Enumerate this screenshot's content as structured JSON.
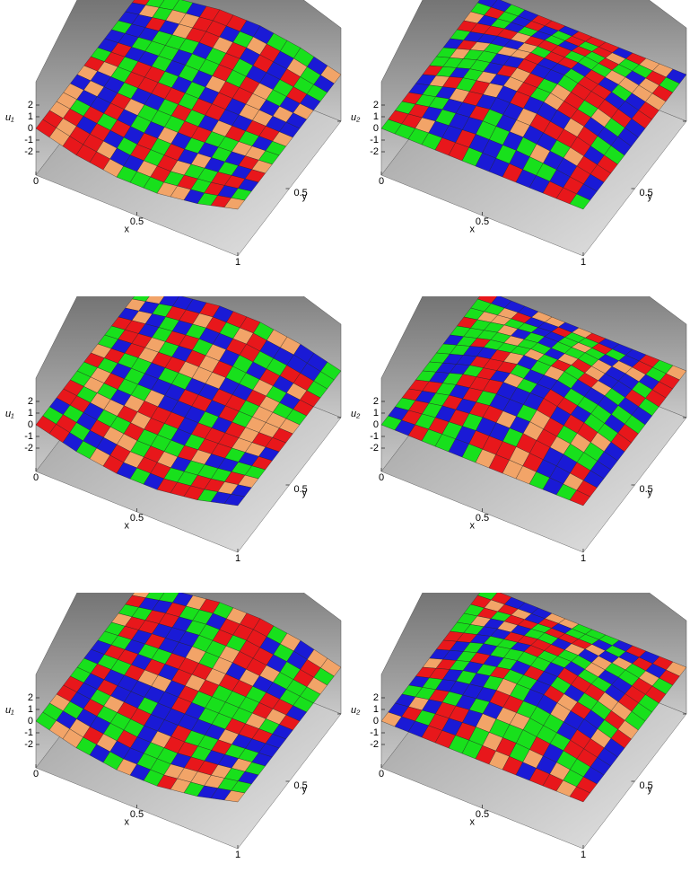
{
  "chart_data": [
    {
      "type": "surface",
      "zlabel": "u₁",
      "xlabel": "x",
      "ylabel": "y",
      "xlim": [
        0,
        1
      ],
      "ylim": [
        0,
        1
      ],
      "zlim": [
        -4,
        4
      ],
      "xticks": [
        0,
        0.5,
        1
      ],
      "yticks": [
        0.5,
        1
      ],
      "zticks": [
        -2,
        -1,
        0,
        1,
        2
      ],
      "z": [
        [
          0,
          0,
          0,
          0,
          0,
          0
        ],
        [
          -0.9,
          -0.5,
          -0.2,
          0.2,
          0.5,
          0.9
        ],
        [
          -1.4,
          -0.9,
          -0.3,
          0.3,
          0.9,
          1.4
        ],
        [
          -1.4,
          -0.9,
          -0.3,
          0.3,
          0.9,
          1.4
        ],
        [
          -0.9,
          -0.5,
          -0.2,
          0.2,
          0.5,
          0.9
        ],
        [
          0,
          0,
          0,
          0,
          0,
          0
        ]
      ]
    },
    {
      "type": "surface",
      "zlabel": "u₂",
      "xlabel": "x",
      "ylabel": "y",
      "xlim": [
        0,
        1
      ],
      "ylim": [
        0,
        1
      ],
      "zlim": [
        -4,
        4
      ],
      "xticks": [
        0,
        0.5,
        1
      ],
      "yticks": [
        0.5,
        1
      ],
      "zticks": [
        -2,
        -1,
        0,
        1,
        2
      ],
      "z": [
        [
          0,
          0,
          0,
          0,
          0,
          0
        ],
        [
          0,
          0.7,
          1.1,
          1.1,
          0.7,
          0
        ],
        [
          0,
          1.1,
          1.8,
          1.8,
          1.1,
          0
        ],
        [
          0,
          1.1,
          1.8,
          1.8,
          1.1,
          0
        ],
        [
          0,
          0.7,
          1.1,
          1.1,
          0.7,
          0
        ],
        [
          0,
          0,
          0,
          0,
          0,
          0
        ]
      ]
    },
    {
      "type": "surface",
      "zlabel": "u₁",
      "xlabel": "x",
      "ylabel": "y",
      "xlim": [
        0,
        1
      ],
      "ylim": [
        0,
        1
      ],
      "zlim": [
        -4,
        4
      ],
      "xticks": [
        0,
        0.5,
        1
      ],
      "yticks": [
        0.5,
        1
      ],
      "zticks": [
        -2,
        -1,
        0,
        1,
        2
      ],
      "z": [
        [
          0,
          0,
          0,
          0,
          0,
          0
        ],
        [
          -0.9,
          -0.5,
          -0.2,
          0.2,
          0.5,
          0.9
        ],
        [
          -1.4,
          -0.9,
          -0.3,
          0.3,
          0.9,
          1.4
        ],
        [
          -1.4,
          -0.9,
          -0.3,
          0.3,
          0.9,
          1.4
        ],
        [
          -0.9,
          -0.5,
          -0.2,
          0.2,
          0.5,
          0.9
        ],
        [
          0,
          0,
          0,
          0,
          0,
          0
        ]
      ]
    },
    {
      "type": "surface",
      "zlabel": "u₂",
      "xlabel": "x",
      "ylabel": "y",
      "xlim": [
        0,
        1
      ],
      "ylim": [
        0,
        1
      ],
      "zlim": [
        -4,
        4
      ],
      "xticks": [
        0,
        0.5,
        1
      ],
      "yticks": [
        0.5,
        1
      ],
      "zticks": [
        -2,
        -1,
        0,
        1,
        2
      ],
      "z": [
        [
          0,
          0,
          0,
          0,
          0,
          0
        ],
        [
          0,
          0.7,
          1.1,
          1.1,
          0.7,
          0
        ],
        [
          0,
          1.1,
          1.8,
          1.8,
          1.1,
          0
        ],
        [
          0,
          1.1,
          1.8,
          1.8,
          1.1,
          0
        ],
        [
          0,
          0.7,
          1.1,
          1.1,
          0.7,
          0
        ],
        [
          0,
          0,
          0,
          0,
          0,
          0
        ]
      ]
    },
    {
      "type": "surface",
      "zlabel": "u₁",
      "xlabel": "x",
      "ylabel": "y",
      "xlim": [
        0,
        1
      ],
      "ylim": [
        0,
        1
      ],
      "zlim": [
        -4,
        4
      ],
      "xticks": [
        0,
        0.5,
        1
      ],
      "yticks": [
        0.5,
        1
      ],
      "zticks": [
        -2,
        -1,
        0,
        1,
        2
      ],
      "z": [
        [
          0,
          0,
          0,
          0,
          0,
          0
        ],
        [
          -0.9,
          -0.5,
          -0.2,
          0.2,
          0.5,
          0.9
        ],
        [
          -1.4,
          -0.9,
          -0.3,
          0.3,
          0.9,
          1.4
        ],
        [
          -1.4,
          -0.9,
          -0.3,
          0.3,
          0.9,
          1.4
        ],
        [
          -0.9,
          -0.5,
          -0.2,
          0.2,
          0.5,
          0.9
        ],
        [
          0,
          0,
          0,
          0,
          0,
          0
        ]
      ]
    },
    {
      "type": "surface",
      "zlabel": "u₂",
      "xlabel": "x",
      "ylabel": "y",
      "xlim": [
        0,
        1
      ],
      "ylim": [
        0,
        1
      ],
      "zlim": [
        -4,
        4
      ],
      "xticks": [
        0,
        0.5,
        1
      ],
      "yticks": [
        0.5,
        1
      ],
      "zticks": [
        -2,
        -1,
        0,
        1,
        2
      ],
      "z": [
        [
          0,
          0,
          0,
          0,
          0,
          0
        ],
        [
          0,
          0.7,
          1.1,
          1.1,
          0.7,
          0
        ],
        [
          0,
          1.1,
          1.8,
          1.8,
          1.1,
          0
        ],
        [
          0,
          1.1,
          1.8,
          1.8,
          1.1,
          0
        ],
        [
          0,
          0.7,
          1.1,
          1.1,
          0.7,
          0
        ],
        [
          0,
          0,
          0,
          0,
          0,
          0
        ]
      ]
    }
  ]
}
